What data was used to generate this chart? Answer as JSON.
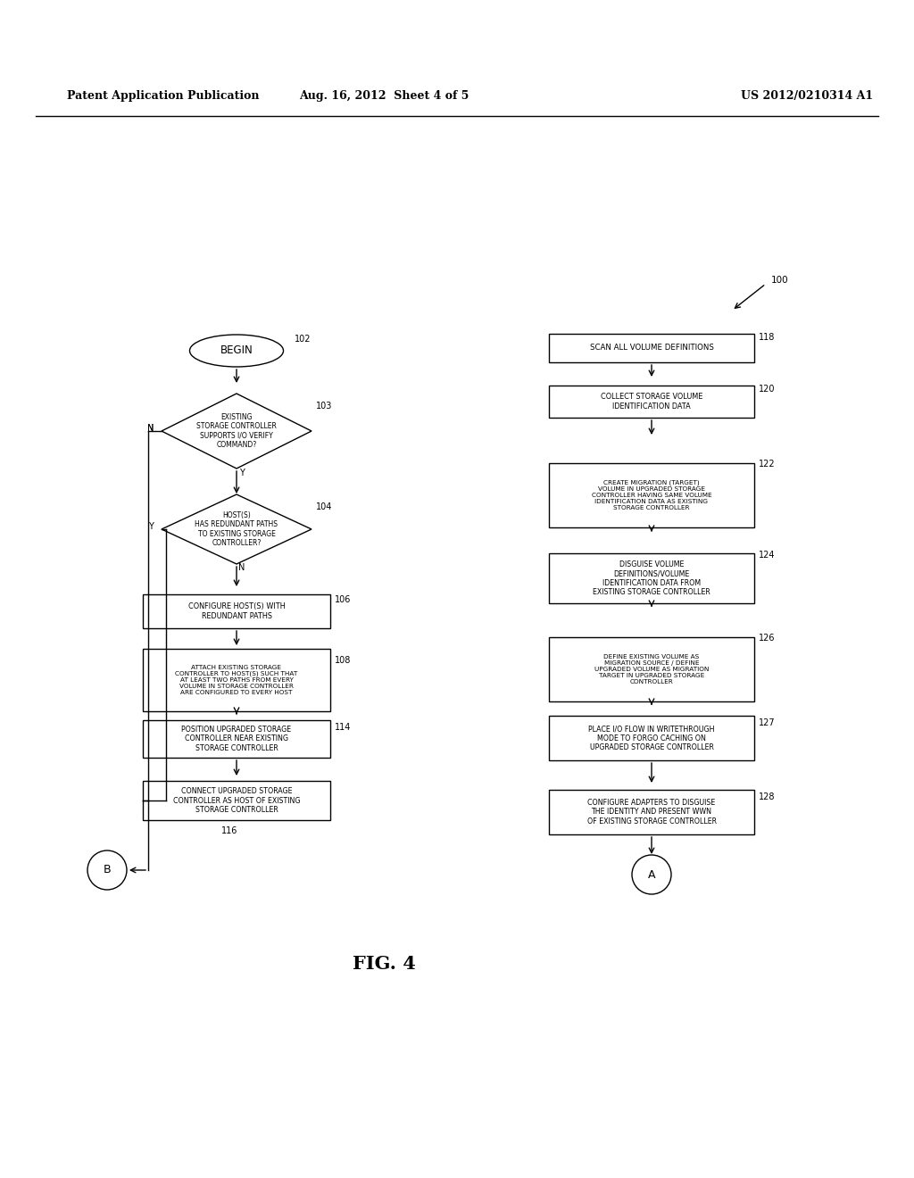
{
  "bg_color": "#ffffff",
  "header_left": "Patent Application Publication",
  "header_mid": "Aug. 16, 2012  Sheet 4 of 5",
  "header_right": "US 2012/0210314 A1",
  "fig_label": "FIG. 4"
}
